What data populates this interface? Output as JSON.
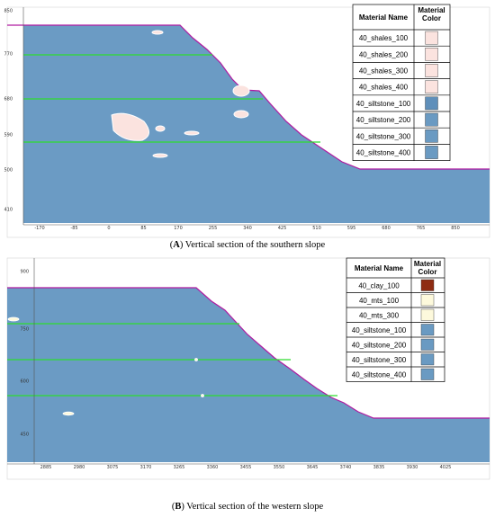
{
  "panels": [
    {
      "yticks": [
        "850",
        "770",
        "680",
        "590",
        "500",
        "410"
      ],
      "xticks": [
        "-170",
        "-85",
        "0",
        "85",
        "170",
        "255",
        "340",
        "425",
        "510",
        "595",
        "680",
        "765",
        "850"
      ],
      "legend": {
        "header": [
          "Material Name",
          "Material Color"
        ],
        "rows": [
          {
            "name": "40_shales_100",
            "color": "#fbe3df"
          },
          {
            "name": "40_shales_200",
            "color": "#fbe3df"
          },
          {
            "name": "40_shales_300",
            "color": "#fbe3df"
          },
          {
            "name": "40_shales_400",
            "color": "#fbe3df"
          },
          {
            "name": "40_siltstone_100",
            "color": "#5f8fba"
          },
          {
            "name": "40_siltstone_200",
            "color": "#6a9ac2"
          },
          {
            "name": "40_siltstone_300",
            "color": "#6a9ac2"
          },
          {
            "name": "40_siltstone_400",
            "color": "#6a9ac2"
          }
        ]
      },
      "caption": [
        "(",
        "A",
        ") Vertical section of the southern slope"
      ]
    },
    {
      "yticks": [
        "900",
        "750",
        "600",
        "450"
      ],
      "xticks": [
        "2885",
        "2980",
        "3075",
        "3170",
        "3265",
        "3360",
        "3455",
        "3550",
        "3645",
        "3740",
        "3835",
        "3930",
        "4025"
      ],
      "legend": {
        "header": [
          "Material Name",
          "Material Color"
        ],
        "rows": [
          {
            "name": "40_clay_100",
            "color": "#8e2c12"
          },
          {
            "name": "40_mts_100",
            "color": "#fdf9dc"
          },
          {
            "name": "40_mts_300",
            "color": "#fdf9dc"
          },
          {
            "name": "40_siltstone_100",
            "color": "#6a9ac2"
          },
          {
            "name": "40_siltstone_200",
            "color": "#6a9ac2"
          },
          {
            "name": "40_siltstone_300",
            "color": "#6a9ac2"
          },
          {
            "name": "40_siltstone_400",
            "color": "#6a9ac2"
          }
        ]
      },
      "caption": [
        "(",
        "B",
        ") Vertical section of the western slope"
      ]
    }
  ]
}
